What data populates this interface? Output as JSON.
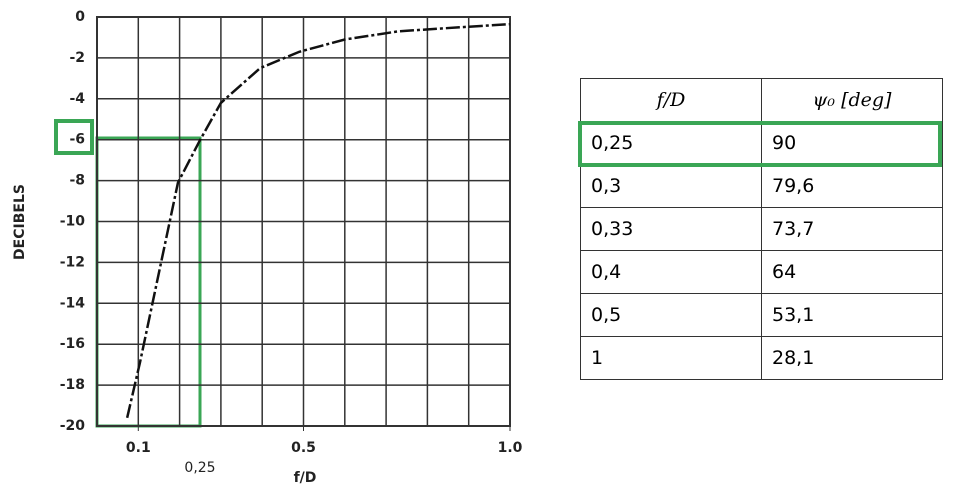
{
  "chart_data": {
    "type": "line",
    "y_label": "DECIBELS",
    "x_label": "f/D",
    "annotation": "0,25",
    "x": [
      0.073,
      0.104,
      0.15,
      0.196,
      0.25,
      0.3,
      0.395,
      0.49,
      0.6,
      0.73,
      0.88,
      1.0
    ],
    "values": [
      -19.6,
      -16.9,
      -12.5,
      -8.1,
      -6,
      -4.2,
      -2.5,
      -1.7,
      -1.1,
      -0.7,
      -0.5,
      -0.35
    ],
    "color": "#111111",
    "xlim": [
      0,
      1.0
    ],
    "ylim": [
      -20,
      0
    ],
    "xticks": [
      0.1,
      0.5,
      {
        "value": 1,
        "label": "1.0"
      }
    ],
    "xgrid": [
      0.1,
      0.2,
      0.3,
      0.4,
      0.5,
      0.6,
      0.7,
      0.8,
      0.9,
      1.0
    ],
    "yticks": [
      0,
      -2,
      -4,
      -6,
      -8,
      -10,
      -12,
      -14,
      -16,
      -18,
      -20
    ],
    "grid": true
  },
  "table": {
    "header": [
      "f/D",
      "ψ₀ [deg]"
    ],
    "rows": [
      [
        "0,25",
        "90"
      ],
      [
        "0,3",
        "79,6"
      ],
      [
        "0,33",
        "73,7"
      ],
      [
        "0,4",
        "64"
      ],
      [
        "0,5",
        "53,1"
      ],
      [
        "1",
        "28,1"
      ]
    ]
  }
}
